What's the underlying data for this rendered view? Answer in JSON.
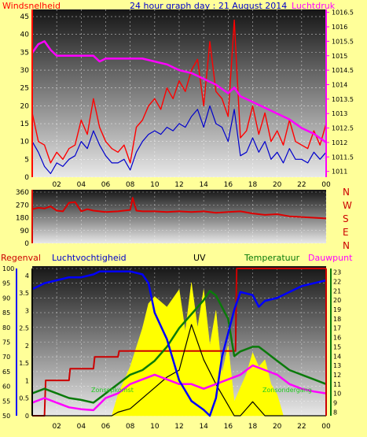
{
  "colors": {
    "background": "#ffff99",
    "wind": "#ff0000",
    "wind_avg": "#0000cc",
    "pressure": "#ff00ff",
    "direction": "#dd0000",
    "rain": "#cc0000",
    "humidity": "#0000ff",
    "uv": "#000000",
    "solar": "#ffff00",
    "temperature": "#0a7a0a",
    "dewpoint": "#ff00ff",
    "title": "#0000cc",
    "text_black": "#000000"
  },
  "chart_data": [
    {
      "id": "wind-pressure",
      "type": "line",
      "title": "24 hour graph day : 21 August 2014",
      "left_label": "Windsnelheid",
      "right_label": "Luchtdruk",
      "x_ticks": [
        "02",
        "04",
        "06",
        "08",
        "10",
        "12",
        "14",
        "16",
        "18",
        "20",
        "22",
        "00"
      ],
      "y_left_ticks": [
        "0",
        "5",
        "10",
        "15",
        "20",
        "25",
        "30",
        "35",
        "40",
        "45"
      ],
      "y_left_range": [
        0,
        47
      ],
      "y_right_ticks": [
        "1011",
        "1011.5",
        "1012",
        "1012.5",
        "1013",
        "1013.5",
        "1014",
        "1014.5",
        "1015",
        "1015.5",
        "1016",
        "1016.5"
      ],
      "y_right_range": [
        1010.8,
        1016.6
      ],
      "x_range": [
        0,
        24
      ],
      "series": [
        {
          "key": "wind_gust",
          "x": [
            0,
            0.5,
            1,
            1.5,
            2,
            2.5,
            3,
            3.5,
            4,
            4.5,
            5,
            5.5,
            6,
            6.5,
            7,
            7.5,
            8,
            8.5,
            9,
            9.5,
            10,
            10.5,
            11,
            11.5,
            12,
            12.5,
            13,
            13.5,
            14,
            14.5,
            15,
            15.5,
            16,
            16.5,
            17,
            17.5,
            18,
            18.5,
            19,
            19.5,
            20,
            20.5,
            21,
            21.5,
            22,
            22.5,
            23,
            23.5,
            24
          ],
          "values": [
            18,
            10,
            9,
            4,
            7,
            5,
            8,
            9,
            16,
            12,
            22,
            14,
            10,
            8,
            7,
            9,
            4,
            14,
            16,
            20,
            22,
            19,
            25,
            22,
            27,
            24,
            30,
            33,
            20,
            38,
            24,
            22,
            17,
            44,
            11,
            13,
            20,
            12,
            18,
            10,
            13,
            9,
            16,
            10,
            9,
            8,
            13,
            9,
            15
          ]
        },
        {
          "key": "wind_avg",
          "x": [
            0,
            0.5,
            1,
            1.5,
            2,
            2.5,
            3,
            3.5,
            4,
            4.5,
            5,
            5.5,
            6,
            6.5,
            7,
            7.5,
            8,
            8.5,
            9,
            9.5,
            10,
            10.5,
            11,
            11.5,
            12,
            12.5,
            13,
            13.5,
            14,
            14.5,
            15,
            15.5,
            16,
            16.5,
            17,
            17.5,
            18,
            18.5,
            19,
            19.5,
            20,
            20.5,
            21,
            21.5,
            22,
            22.5,
            23,
            23.5,
            24
          ],
          "values": [
            10,
            7,
            3,
            1,
            4,
            3,
            5,
            6,
            10,
            8,
            13,
            9,
            6,
            4,
            4,
            5,
            2,
            7,
            10,
            12,
            13,
            12,
            14,
            13,
            15,
            14,
            17,
            19,
            14,
            20,
            15,
            14,
            10,
            19,
            6,
            7,
            11,
            7,
            10,
            5,
            7,
            4,
            8,
            5,
            5,
            4,
            7,
            5,
            7
          ]
        },
        {
          "key": "pressure",
          "x": [
            0,
            0.5,
            1,
            1.5,
            2,
            3,
            4,
            5,
            5.5,
            6,
            7,
            8,
            9,
            10,
            11,
            12,
            13,
            14,
            15,
            16,
            16.5,
            17,
            18,
            19,
            20,
            21,
            22,
            23,
            24
          ],
          "values": [
            1015.1,
            1015.4,
            1015.5,
            1015.2,
            1015.0,
            1015.0,
            1015.0,
            1015.0,
            1014.8,
            1014.9,
            1014.9,
            1014.9,
            1014.9,
            1014.8,
            1014.7,
            1014.5,
            1014.4,
            1014.2,
            1014.0,
            1013.7,
            1013.9,
            1013.6,
            1013.4,
            1013.2,
            1013.0,
            1012.8,
            1012.5,
            1012.3,
            1012.0
          ]
        }
      ]
    },
    {
      "id": "wind-direction",
      "type": "line",
      "right_label_letters": [
        "N",
        "W",
        "S",
        "E",
        "N"
      ],
      "y_ticks": [
        "0",
        "90",
        "180",
        "270",
        "360"
      ],
      "y_range": [
        0,
        360
      ],
      "x_range": [
        0,
        24
      ],
      "series": [
        {
          "key": "direction",
          "x": [
            0,
            0.5,
            1,
            1.5,
            2,
            2.5,
            3,
            3.5,
            4,
            4.5,
            5,
            6,
            7,
            8,
            8.2,
            8.5,
            9,
            10,
            11,
            12,
            13,
            14,
            15,
            16,
            17,
            18,
            19,
            20,
            21,
            22,
            23,
            24
          ],
          "values": [
            240,
            250,
            245,
            260,
            230,
            225,
            285,
            290,
            225,
            240,
            230,
            220,
            225,
            235,
            320,
            230,
            225,
            225,
            220,
            225,
            220,
            225,
            215,
            220,
            225,
            210,
            200,
            205,
            190,
            185,
            180,
            175
          ]
        }
      ]
    },
    {
      "id": "climate",
      "type": "line",
      "labels": {
        "rain": "Regenval",
        "humidity": "Luchtvochtigheid",
        "uv": "UV",
        "temperature": "Temperatuur",
        "dewpoint": "Dauwpunt",
        "sunrise": "Zonsopkomst",
        "sunset": "Zonsondergang"
      },
      "y_humidity_ticks": [
        "50",
        "55",
        "60",
        "65",
        "70",
        "75",
        "80",
        "85",
        "90",
        "95",
        "100"
      ],
      "y_humidity_range": [
        50,
        100
      ],
      "y_uv_ticks": [
        "0",
        "0.5",
        "1",
        "1.5",
        "2",
        "2.5",
        "3",
        "3.5",
        "4"
      ],
      "y_uv_range": [
        0,
        4.2
      ],
      "y_temp_ticks": [
        "8",
        "9",
        "10",
        "11",
        "12",
        "13",
        "14",
        "15",
        "16",
        "17",
        "18",
        "19",
        "20",
        "21",
        "22",
        "23"
      ],
      "y_temp_range": [
        7.6,
        23.4
      ],
      "x_range": [
        0,
        24
      ],
      "series": [
        {
          "key": "humidity",
          "x": [
            0,
            1,
            2,
            3,
            4,
            5,
            5.5,
            6,
            7,
            8,
            9,
            9.5,
            10,
            11,
            12,
            13,
            14,
            14.5,
            15,
            15.5,
            16,
            16.5,
            17,
            18,
            18.5,
            19,
            20,
            21,
            22,
            23,
            24
          ],
          "values": [
            93,
            95,
            96,
            97,
            97,
            98,
            99,
            99,
            99,
            99,
            98,
            95,
            85,
            76,
            62,
            55,
            52,
            50,
            56,
            70,
            78,
            86,
            92,
            91,
            87,
            89,
            90,
            92,
            94,
            95,
            96
          ]
        },
        {
          "key": "temperature",
          "x": [
            0,
            1,
            2,
            3,
            4,
            5,
            5.5,
            6,
            7,
            8,
            9,
            10,
            11,
            12,
            13,
            14,
            14.5,
            15,
            16,
            16.5,
            17,
            18,
            18.5,
            19,
            20,
            21,
            22,
            23,
            24
          ],
          "values": [
            10,
            10.5,
            10,
            9.5,
            9.3,
            9.0,
            9.5,
            10,
            11,
            12,
            12.5,
            13.5,
            15,
            17,
            18.5,
            20,
            21,
            20.5,
            18,
            14,
            14.5,
            15,
            15,
            14.5,
            13.5,
            12.5,
            12,
            11.5,
            11
          ]
        },
        {
          "key": "dewpoint",
          "x": [
            0,
            1,
            2,
            3,
            4,
            5,
            6,
            7,
            8,
            9,
            10,
            11,
            12,
            13,
            14,
            15,
            16,
            17,
            18,
            19,
            20,
            21,
            22,
            23,
            24
          ],
          "values": [
            9,
            9.5,
            9,
            8.5,
            8.3,
            8.2,
            9.5,
            10,
            11,
            11.5,
            12,
            11.5,
            11,
            11,
            10.5,
            11,
            11.5,
            12,
            13,
            12.5,
            12,
            11,
            10.5,
            10.2,
            10
          ]
        },
        {
          "key": "rain",
          "x": [
            0,
            1,
            1.1,
            3,
            3.1,
            5,
            5.1,
            7,
            7.1,
            16.6,
            16.7,
            24
          ],
          "values": [
            50,
            50,
            62,
            62,
            66,
            66,
            70,
            70,
            72,
            72,
            100,
            100
          ]
        },
        {
          "key": "uv",
          "x": [
            0,
            6.5,
            7,
            8,
            9,
            10,
            11,
            12,
            13,
            14,
            15,
            16,
            16.5,
            17,
            17.5,
            18,
            18.5,
            19,
            20,
            24
          ],
          "values": [
            0,
            0,
            0.1,
            0.2,
            0.5,
            0.8,
            1.1,
            1.3,
            2.6,
            1.6,
            0.9,
            0.3,
            0,
            0,
            0.2,
            0.4,
            0.2,
            0,
            0,
            0
          ]
        },
        {
          "key": "solar",
          "x": [
            6.5,
            7,
            8,
            9,
            9.5,
            10,
            11,
            12,
            12.5,
            13,
            13.5,
            14,
            14.5,
            15,
            15.5,
            16,
            16.5,
            17,
            17.5,
            18,
            18.5,
            19,
            19.5,
            20,
            20.5
          ],
          "values": [
            0,
            0.6,
            1.4,
            2.5,
            3.2,
            3.4,
            3.1,
            3.6,
            2.4,
            3.8,
            2.5,
            3.6,
            2.0,
            3.0,
            1.2,
            2.0,
            0.4,
            0.8,
            1.2,
            1.8,
            1.4,
            1.6,
            0.9,
            0.6,
            0
          ]
        }
      ]
    }
  ]
}
